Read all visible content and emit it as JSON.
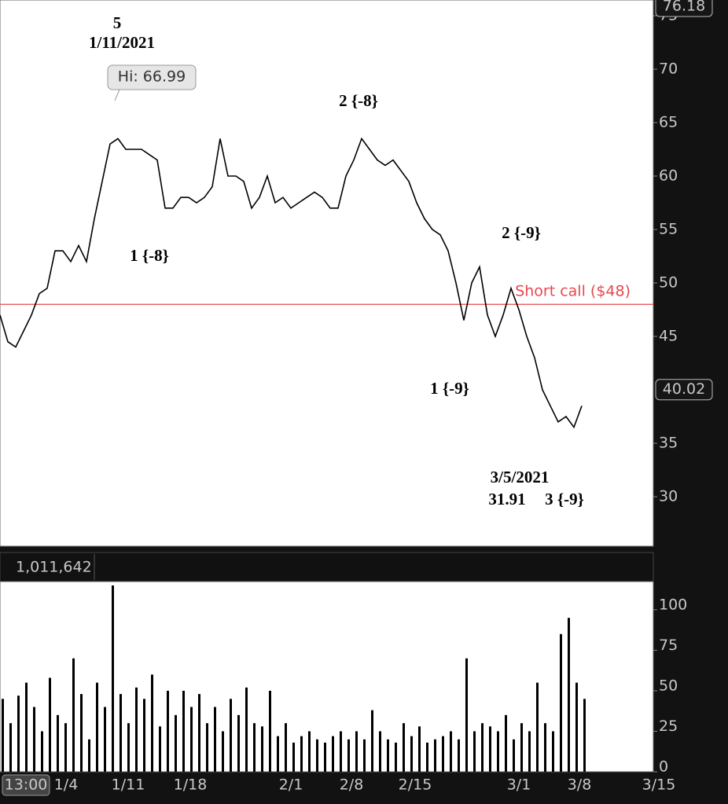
{
  "chart_data": [
    {
      "type": "line",
      "series": [
        {
          "name": "Price",
          "color": "#000000",
          "values": [
            47,
            44.5,
            44,
            45.5,
            47,
            49,
            49.5,
            53,
            53,
            52,
            53.5,
            52,
            56,
            59.5,
            63,
            63.5,
            62.5,
            62.5,
            62.5,
            62,
            61.5,
            57,
            57,
            58,
            58,
            57.5,
            58,
            59,
            63.5,
            60,
            60,
            59.5,
            57,
            58,
            60,
            57.5,
            58,
            57,
            57.5,
            58,
            58.5,
            58,
            57,
            57,
            60,
            61.5,
            63.5,
            62.5,
            61.5,
            61,
            61.5,
            60.5,
            59.5,
            57.5,
            56,
            55,
            54.5,
            53,
            50,
            46.5,
            50,
            51.5,
            47,
            45,
            47,
            49.5,
            47.5,
            45,
            43,
            40,
            38.5,
            37,
            37.5,
            36.5,
            38.5
          ]
        }
      ],
      "ylim": [
        25.37,
        76.47
      ],
      "yticks": [
        30,
        35,
        45,
        50,
        55,
        60,
        65,
        70,
        75
      ],
      "reference_line": {
        "value": 48,
        "label": "Short call ($48)",
        "color": "#e8474f"
      },
      "price_tags": [
        {
          "value": 76.18,
          "label": "76.18"
        },
        {
          "value": 40.02,
          "label": "40.02"
        }
      ],
      "annotations": [
        "5",
        "1/11/2021",
        "Hi: 66.99",
        "2 {-8}",
        "1 {-8}",
        "2 {-9}",
        "1 {-9}",
        "3/5/2021",
        "31.91",
        "3 {-9}"
      ]
    },
    {
      "type": "bar",
      "header": "1,011,642",
      "color": "#000000",
      "values": [
        45,
        30,
        47,
        55,
        40,
        25,
        58,
        35,
        30,
        70,
        48,
        20,
        55,
        40,
        115,
        48,
        30,
        52,
        45,
        60,
        28,
        50,
        35,
        50,
        40,
        48,
        30,
        40,
        25,
        45,
        35,
        52,
        30,
        28,
        50,
        22,
        30,
        18,
        22,
        25,
        20,
        18,
        22,
        25,
        20,
        25,
        20,
        38,
        25,
        20,
        18,
        30,
        22,
        28,
        18,
        20,
        22,
        25,
        20,
        70,
        25,
        30,
        28,
        25,
        35,
        20,
        30,
        25,
        55,
        30,
        25,
        85,
        95,
        55,
        45
      ],
      "ylim": [
        0,
        117.4
      ],
      "yticks": [
        0,
        25,
        50,
        75,
        100
      ],
      "xtick_labels": [
        "13:00",
        "1/4",
        "1/11",
        "1/18",
        "2/1",
        "2/8",
        "2/15",
        "3/1",
        "3/8",
        "3/15"
      ]
    }
  ]
}
